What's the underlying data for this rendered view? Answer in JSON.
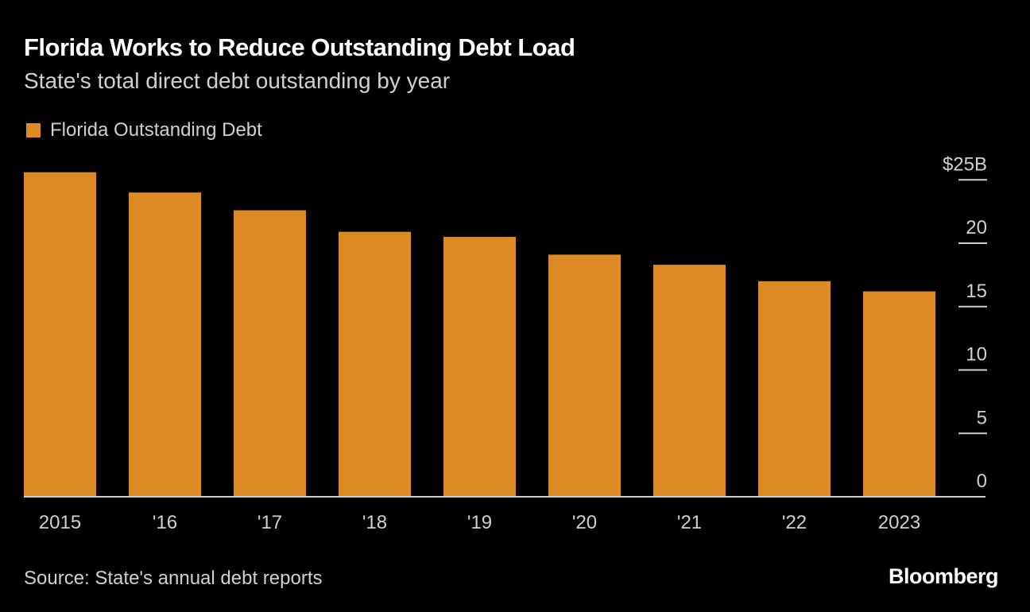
{
  "title": "Florida Works to Reduce Outstanding Debt Load",
  "subtitle": "State's total direct debt outstanding by year",
  "source": "Source: State's annual debt reports",
  "brand": "Bloomberg",
  "chart_data": {
    "type": "bar",
    "title": "Florida Works to Reduce Outstanding Debt Load",
    "subtitle": "State's total direct debt outstanding by year",
    "categories": [
      "2015",
      "'16",
      "'17",
      "'18",
      "'19",
      "'20",
      "'21",
      "'22",
      "2023"
    ],
    "series": [
      {
        "name": "Florida Outstanding Debt",
        "color": "#dc8a24",
        "values": [
          25.6,
          24.0,
          22.6,
          20.9,
          20.5,
          19.1,
          18.3,
          17.0,
          16.2
        ]
      }
    ],
    "ylabel": "",
    "yticks": [
      {
        "v": 0,
        "label": "0"
      },
      {
        "v": 5,
        "label": "5"
      },
      {
        "v": 10,
        "label": "10"
      },
      {
        "v": 15,
        "label": "15"
      },
      {
        "v": 20,
        "label": "20"
      },
      {
        "v": 25,
        "label": "$25B"
      }
    ],
    "ylim": [
      0,
      25
    ],
    "legend": "top-left",
    "axis_side": "right"
  }
}
